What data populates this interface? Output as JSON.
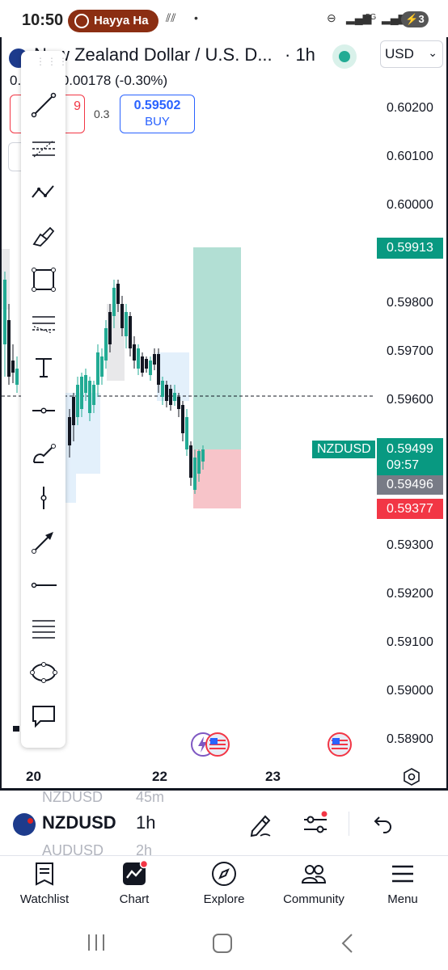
{
  "status_bar": {
    "time": "10:50",
    "notification_pill": "Hayya Ha"
  },
  "chart": {
    "title": "New Zealand Dollar / U.S. D...",
    "timeframe": "· 1h",
    "currency": "USD",
    "price_lead": "0.",
    "change": "-0.00178 (-0.30%)",
    "sell_price": "9",
    "spread": "0.3",
    "buy_price": "0.59502",
    "buy_label": "BUY",
    "price_scale": [
      "0.60200",
      "0.60100",
      "0.60000",
      "0.59800",
      "0.59700",
      "0.59600",
      "0.59300",
      "0.59200",
      "0.59100",
      "0.59000",
      "0.58900"
    ],
    "target_price": "0.59913",
    "symbol_tag": "NZDUSD",
    "last_price": "0.59499",
    "countdown": "09:57",
    "bid_price": "0.59496",
    "stop_price": "0.59377",
    "x_labels": [
      "20",
      "22",
      "23"
    ]
  },
  "toolbar": {
    "tools": [
      "trend-line",
      "fib-retracement",
      "patterns",
      "brush",
      "rectangle",
      "gann-fan",
      "text",
      "horizontal-ray",
      "freehand",
      "vertical-line",
      "arrow",
      "horizontal-line",
      "parallel-channel",
      "ellipse",
      "callout"
    ]
  },
  "symbol_bar": {
    "ghost_above": "NZDUSD",
    "ghost_above_tf": "45m",
    "ghost_below": "AUDUSD",
    "ghost_below_tf": "2h",
    "symbol": "NZDUSD",
    "timeframe": "1h"
  },
  "bottom_nav": {
    "items": [
      {
        "label": "Watchlist",
        "icon": "watchlist-icon"
      },
      {
        "label": "Chart",
        "icon": "chart-icon"
      },
      {
        "label": "Explore",
        "icon": "compass-icon"
      },
      {
        "label": "Community",
        "icon": "community-icon"
      },
      {
        "label": "Menu",
        "icon": "menu-icon"
      }
    ]
  },
  "colors": {
    "up": "#22ab94",
    "down": "#131722",
    "buy": "#2962ff",
    "sell": "#f23645",
    "target_zone": "#b2dfd4",
    "stop_zone": "#f7c4c9"
  }
}
